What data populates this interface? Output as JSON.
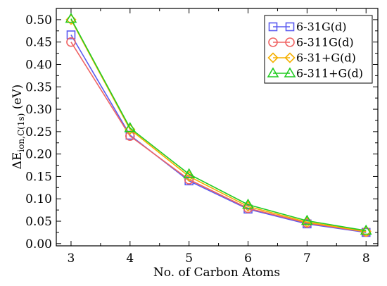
{
  "chart_data": {
    "type": "line",
    "x": [
      3,
      4,
      5,
      6,
      7,
      8
    ],
    "xlim": [
      2.75,
      8.2
    ],
    "ylim": [
      -0.005,
      0.525
    ],
    "xticks": [
      "3",
      "4",
      "5",
      "6",
      "7",
      "8"
    ],
    "yticks": [
      "0.00",
      "0.05",
      "0.10",
      "0.15",
      "0.20",
      "0.25",
      "0.30",
      "0.35",
      "0.40",
      "0.45",
      "0.50"
    ],
    "xlabel": "No. of Carbon Atoms",
    "ylabel_main": "ΔE",
    "ylabel_sub": "ion,C(1s)",
    "ylabel_unit": " (eV)",
    "legend_position": "top-right",
    "grid": false,
    "series": [
      {
        "name": "6-31G(d)",
        "marker": "square",
        "color": "#5b5bf0",
        "values": [
          0.466,
          0.242,
          0.14,
          0.077,
          0.044,
          0.025
        ]
      },
      {
        "name": "6-311G(d)",
        "marker": "circle",
        "color": "#f06464",
        "values": [
          0.45,
          0.24,
          0.143,
          0.079,
          0.046,
          0.026
        ]
      },
      {
        "name": "6-31+G(d)",
        "marker": "diamond",
        "color": "#f5b000",
        "values": [
          0.5,
          0.255,
          0.15,
          0.083,
          0.048,
          0.027
        ]
      },
      {
        "name": "6-311+G(d)",
        "marker": "triangle",
        "color": "#22cc22",
        "values": [
          0.502,
          0.258,
          0.155,
          0.087,
          0.051,
          0.029
        ]
      }
    ]
  }
}
